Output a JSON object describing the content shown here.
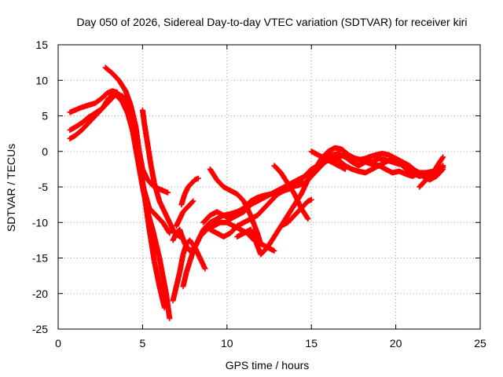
{
  "chart_data": {
    "type": "scatter",
    "title": "Day 050 of 2026, Sidereal Day-to-day VTEC variation (SDTVAR) for receiver kiri",
    "xlabel": "GPS time / hours",
    "ylabel": "SDTVAR / TECUs",
    "xlim": [
      0,
      25
    ],
    "ylim": [
      -25,
      15
    ],
    "xticks": [
      0,
      5,
      10,
      15,
      20,
      25
    ],
    "yticks": [
      15,
      10,
      5,
      0,
      -5,
      -10,
      -15,
      -20,
      -25
    ],
    "grid": true,
    "marker": "+",
    "color": "#ff0000",
    "series": [
      {
        "x": [
          0.7,
          1.0,
          1.4,
          1.8,
          2.2,
          2.6,
          2.9,
          3.2,
          3.5,
          3.8,
          4.1,
          4.4,
          4.7,
          5.0,
          5.3,
          5.6,
          6.0,
          6.4,
          6.6
        ],
        "y": [
          5.5,
          5.8,
          6.2,
          6.5,
          6.8,
          7.5,
          8.2,
          8.5,
          8.3,
          7.0,
          5.5,
          3.0,
          -1.0,
          -5.0,
          -8.5,
          -11.0,
          -15.0,
          -20.0,
          -23.5
        ]
      },
      {
        "x": [
          0.7,
          1.0,
          1.4,
          1.8,
          2.2,
          2.6,
          3.0,
          3.4,
          3.8,
          4.2,
          4.5,
          4.8,
          5.1,
          5.4,
          5.7,
          6.0,
          6.3
        ],
        "y": [
          3.0,
          3.4,
          4.0,
          4.8,
          5.4,
          6.0,
          7.0,
          8.0,
          7.8,
          6.5,
          3.5,
          -1.0,
          -6.0,
          -11.0,
          -15.5,
          -19.0,
          -22.0
        ]
      },
      {
        "x": [
          0.7,
          1.0,
          1.4,
          1.8,
          2.2,
          2.6,
          3.0,
          3.4,
          3.8,
          4.2,
          4.5,
          4.8,
          5.1,
          5.4,
          5.8,
          6.2,
          6.6
        ],
        "y": [
          1.8,
          2.2,
          3.0,
          4.0,
          5.0,
          6.0,
          7.5,
          8.0,
          7.0,
          5.0,
          2.0,
          -2.0,
          -5.5,
          -8.0,
          -9.0,
          -10.0,
          -11.5
        ]
      },
      {
        "x": [
          2.8,
          3.2,
          3.6,
          4.0,
          4.3,
          4.6,
          4.8,
          5.0,
          5.3,
          5.6,
          5.9,
          6.2,
          6.5
        ],
        "y": [
          11.8,
          11.0,
          10.0,
          8.5,
          6.5,
          3.5,
          0.0,
          -2.5,
          -4.0,
          -4.8,
          -5.2,
          -5.5,
          -5.8
        ]
      },
      {
        "x": [
          5.0,
          5.1,
          5.3,
          5.5,
          5.7,
          6.0,
          6.3,
          6.6,
          6.9,
          7.2
        ],
        "y": [
          5.8,
          4.0,
          1.0,
          -2.0,
          -4.5,
          -7.0,
          -8.5,
          -10.0,
          -11.5,
          -12.0
        ]
      },
      {
        "x": [
          6.8,
          7.0,
          7.2,
          7.4,
          7.6,
          7.8,
          8.1,
          8.4,
          8.7
        ],
        "y": [
          -21.0,
          -19.0,
          -17.0,
          -14.5,
          -13.0,
          -12.5,
          -13.5,
          -15.0,
          -16.5
        ]
      },
      {
        "x": [
          6.8,
          7.0,
          7.2,
          7.5,
          7.8,
          8.1,
          8.4,
          8.8,
          9.2,
          9.6,
          10.0,
          10.4,
          10.8,
          11.2,
          11.6,
          12.0,
          12.4,
          12.8
        ],
        "y": [
          -12.5,
          -11.5,
          -11.0,
          -13.0,
          -14.0,
          -13.5,
          -12.0,
          -11.0,
          -10.5,
          -10.0,
          -10.0,
          -10.5,
          -11.0,
          -11.5,
          -12.5,
          -13.0,
          -13.5,
          -14.0
        ]
      },
      {
        "x": [
          7.3,
          7.5,
          7.7,
          7.9,
          8.1,
          8.3
        ],
        "y": [
          -7.5,
          -6.0,
          -5.0,
          -4.5,
          -4.0,
          -3.8
        ]
      },
      {
        "x": [
          7.0,
          7.2,
          7.4,
          7.6,
          7.8,
          8.0
        ],
        "y": [
          -10.5,
          -9.5,
          -8.5,
          -8.0,
          -7.5,
          -7.0
        ]
      },
      {
        "x": [
          7.4,
          7.6,
          7.8,
          8.0,
          8.3,
          8.6,
          9.0,
          9.4,
          9.8,
          10.2,
          10.6,
          11.0,
          11.4,
          11.8,
          12.2,
          12.6,
          13.0,
          13.4,
          13.8,
          14.2,
          14.6,
          15.0,
          15.4,
          15.8,
          16.2,
          16.6,
          17.0,
          17.4,
          17.8,
          18.2,
          18.6,
          19.0,
          19.4,
          19.8,
          20.2,
          20.6,
          21.0,
          21.4,
          21.8,
          22.2,
          22.6,
          22.8
        ],
        "y": [
          -19.0,
          -17.0,
          -15.5,
          -14.0,
          -12.5,
          -11.0,
          -10.0,
          -9.5,
          -9.0,
          -8.8,
          -8.5,
          -8.0,
          -7.0,
          -6.5,
          -6.2,
          -6.0,
          -5.8,
          -5.5,
          -5.2,
          -4.5,
          -3.5,
          -2.5,
          -2.0,
          -1.5,
          -1.0,
          -0.8,
          -0.5,
          -0.8,
          -1.2,
          -1.0,
          -1.5,
          -1.0,
          -1.2,
          -1.5,
          -1.8,
          -2.0,
          -2.5,
          -3.0,
          -3.0,
          -2.8,
          -2.5,
          -2.2
        ]
      },
      {
        "x": [
          8.6,
          9.0,
          9.4,
          9.8,
          10.2,
          10.6,
          11.0,
          11.4,
          11.8,
          12.2,
          12.6,
          13.0,
          13.4,
          13.8,
          14.2,
          14.6,
          15.0,
          15.4,
          15.8,
          16.2,
          16.6,
          17.0,
          17.4,
          17.8,
          18.2,
          18.6,
          19.0,
          19.4,
          19.8,
          20.2,
          20.6,
          21.0,
          21.4,
          21.8,
          22.2,
          22.6,
          22.8
        ],
        "y": [
          -10.0,
          -9.0,
          -8.5,
          -9.0,
          -9.5,
          -9.0,
          -8.5,
          -7.5,
          -7.0,
          -6.5,
          -6.0,
          -5.5,
          -5.0,
          -4.5,
          -4.0,
          -3.5,
          -3.0,
          -2.0,
          -1.0,
          -0.5,
          -0.3,
          -0.8,
          -1.5,
          -2.0,
          -1.5,
          -1.8,
          -2.0,
          -1.5,
          -1.0,
          -1.5,
          -2.5,
          -3.0,
          -3.5,
          -3.2,
          -3.0,
          -2.5,
          -2.0
        ]
      },
      {
        "x": [
          9.0,
          9.4,
          9.8,
          10.2,
          10.6,
          11.0,
          11.4,
          11.8,
          12.2,
          12.6,
          13.0,
          13.4,
          13.8,
          14.2,
          14.6,
          15.0,
          15.4,
          15.8,
          16.2,
          16.6,
          17.0,
          17.4,
          17.8,
          18.2,
          18.6,
          19.0,
          19.4,
          19.8,
          20.2,
          20.6,
          21.0,
          21.4,
          21.8,
          22.2,
          22.6,
          22.8
        ],
        "y": [
          -11.0,
          -11.5,
          -12.0,
          -11.5,
          -10.5,
          -10.0,
          -9.5,
          -9.0,
          -8.0,
          -7.0,
          -6.0,
          -5.5,
          -5.0,
          -4.8,
          -4.5,
          -3.5,
          -2.5,
          -1.5,
          -1.0,
          -1.2,
          -2.0,
          -2.5,
          -2.8,
          -3.0,
          -2.5,
          -2.0,
          -2.5,
          -3.0,
          -2.8,
          -3.2,
          -3.5,
          -3.0,
          -3.5,
          -3.0,
          -2.5,
          -2.2
        ]
      },
      {
        "x": [
          9.0,
          9.4,
          9.8,
          10.2,
          10.6,
          11.0,
          11.4,
          11.8,
          12.0
        ],
        "y": [
          -2.5,
          -4.0,
          -5.0,
          -5.5,
          -6.0,
          -7.0,
          -9.0,
          -11.5,
          -13.0
        ]
      },
      {
        "x": [
          10.6,
          11.0,
          11.4,
          11.6,
          12.0,
          12.4,
          12.8,
          13.2,
          13.6,
          14.0,
          14.4,
          14.8,
          15.2,
          15.6,
          16.0,
          16.4,
          16.8,
          17.2,
          17.6,
          18.0,
          18.4,
          18.8,
          19.2,
          19.6,
          20.0,
          20.4,
          20.8,
          21.2,
          21.6,
          22.0,
          22.4,
          22.8
        ],
        "y": [
          -12.0,
          -11.5,
          -11.0,
          -12.0,
          -14.5,
          -13.5,
          -12.0,
          -10.5,
          -9.0,
          -7.5,
          -6.0,
          -4.0,
          -2.5,
          -1.0,
          0.0,
          0.5,
          0.3,
          -0.5,
          -1.0,
          -1.2,
          -0.8,
          -0.5,
          -0.3,
          -0.5,
          -1.0,
          -1.5,
          -2.0,
          -2.8,
          -3.5,
          -4.0,
          -3.5,
          -2.5
        ]
      },
      {
        "x": [
          12.8,
          13.2,
          13.6,
          14.0,
          14.4,
          14.8
        ],
        "y": [
          -2.0,
          -3.0,
          -4.5,
          -6.0,
          -8.0,
          -9.5
        ]
      },
      {
        "x": [
          13.2,
          13.6,
          14.0,
          14.4,
          14.8,
          15.0
        ],
        "y": [
          -10.5,
          -10.0,
          -9.0,
          -8.0,
          -7.0,
          -6.8
        ]
      },
      {
        "x": [
          15.0,
          15.4,
          15.8,
          16.2,
          16.6,
          17.0
        ],
        "y": [
          0.0,
          -0.5,
          -1.0,
          -1.5,
          -2.0,
          -2.5
        ]
      },
      {
        "x": [
          21.4,
          21.8,
          22.2,
          22.6,
          22.8
        ],
        "y": [
          -5.0,
          -4.0,
          -3.0,
          -1.5,
          -0.8
        ]
      }
    ]
  }
}
